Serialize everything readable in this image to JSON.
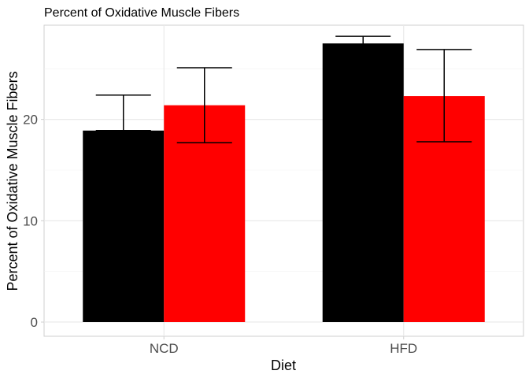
{
  "chart_data": {
    "type": "bar",
    "title": "Percent of Oxidative Muscle Fibers",
    "xlabel": "Diet",
    "ylabel": "Percent of Oxidative Muscle Fibers",
    "categories": [
      "NCD",
      "HFD"
    ],
    "ylim": [
      -1.4,
      29.3
    ],
    "yticks": [
      0,
      10,
      20
    ],
    "grid": true,
    "legend": "none",
    "series": [
      {
        "color": "#000000",
        "values": [
          18.9,
          27.5
        ],
        "error_low": [
          18.9,
          26.7
        ],
        "error_high": [
          22.4,
          28.2
        ]
      },
      {
        "color": "#ff0000",
        "values": [
          21.4,
          22.3
        ],
        "error_low": [
          17.7,
          17.8
        ],
        "error_high": [
          25.1,
          26.9
        ]
      }
    ]
  }
}
